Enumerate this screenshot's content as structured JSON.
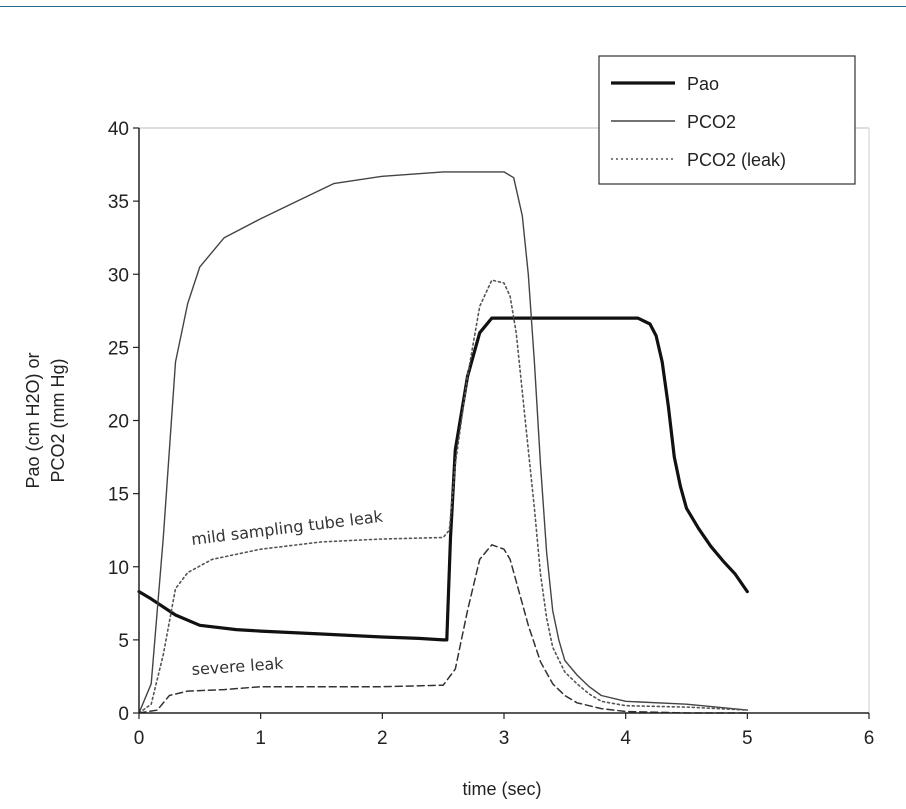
{
  "chart_data": {
    "type": "line",
    "xlabel": "time (sec)",
    "ylabel_line1": "Pao (cm H2O) or",
    "ylabel_line2": "PCO2 (mm Hg)",
    "xlim": [
      0,
      6
    ],
    "ylim": [
      0,
      40
    ],
    "xticks": [
      "0",
      "1",
      "2",
      "3",
      "4",
      "5",
      "6"
    ],
    "yticks": [
      "0",
      "5",
      "10",
      "15",
      "20",
      "25",
      "30",
      "35",
      "40"
    ],
    "grid": false,
    "legend_position": "top-right",
    "legend": [
      "Pao",
      "PCO2",
      "PCO2 (leak)"
    ],
    "annotations": [
      "mild sampling tube leak",
      "severe leak"
    ],
    "series": [
      {
        "name": "Pao",
        "style": "thick-solid",
        "points": [
          [
            0,
            8.3
          ],
          [
            0.1,
            7.8
          ],
          [
            0.3,
            6.7
          ],
          [
            0.5,
            6.0
          ],
          [
            0.8,
            5.7
          ],
          [
            1.0,
            5.6
          ],
          [
            1.5,
            5.4
          ],
          [
            2.0,
            5.2
          ],
          [
            2.3,
            5.1
          ],
          [
            2.5,
            5.0
          ],
          [
            2.53,
            5.0
          ],
          [
            2.56,
            12.0
          ],
          [
            2.6,
            18.0
          ],
          [
            2.7,
            23.0
          ],
          [
            2.8,
            26.0
          ],
          [
            2.9,
            27.0
          ],
          [
            3.0,
            27.0
          ],
          [
            3.5,
            27.0
          ],
          [
            4.0,
            27.0
          ],
          [
            4.1,
            27.0
          ],
          [
            4.2,
            26.6
          ],
          [
            4.25,
            25.8
          ],
          [
            4.3,
            24.0
          ],
          [
            4.35,
            21.0
          ],
          [
            4.4,
            17.5
          ],
          [
            4.45,
            15.5
          ],
          [
            4.5,
            14.0
          ],
          [
            4.6,
            12.6
          ],
          [
            4.7,
            11.4
          ],
          [
            4.8,
            10.4
          ],
          [
            4.9,
            9.5
          ],
          [
            5.0,
            8.3
          ]
        ]
      },
      {
        "name": "PCO2",
        "style": "thin-solid",
        "points": [
          [
            0,
            0
          ],
          [
            0.1,
            2.0
          ],
          [
            0.2,
            12.0
          ],
          [
            0.3,
            24.0
          ],
          [
            0.4,
            28.0
          ],
          [
            0.5,
            30.5
          ],
          [
            0.7,
            32.5
          ],
          [
            1.0,
            33.8
          ],
          [
            1.3,
            35.0
          ],
          [
            1.6,
            36.2
          ],
          [
            2.0,
            36.7
          ],
          [
            2.5,
            37.0
          ],
          [
            3.0,
            37.0
          ],
          [
            3.08,
            36.6
          ],
          [
            3.15,
            34.0
          ],
          [
            3.2,
            30.0
          ],
          [
            3.25,
            24.0
          ],
          [
            3.3,
            17.0
          ],
          [
            3.35,
            11.0
          ],
          [
            3.4,
            7.0
          ],
          [
            3.45,
            5.0
          ],
          [
            3.5,
            3.6
          ],
          [
            3.6,
            2.6
          ],
          [
            3.7,
            1.8
          ],
          [
            3.8,
            1.2
          ],
          [
            4.0,
            0.8
          ],
          [
            4.5,
            0.6
          ],
          [
            5.0,
            0.2
          ]
        ]
      },
      {
        "name": "PCO2 (leak)",
        "style": "dotted",
        "points": [
          [
            0,
            0
          ],
          [
            0.1,
            0.6
          ],
          [
            0.2,
            4.0
          ],
          [
            0.3,
            8.5
          ],
          [
            0.4,
            9.6
          ],
          [
            0.6,
            10.5
          ],
          [
            1.0,
            11.2
          ],
          [
            1.5,
            11.7
          ],
          [
            2.0,
            11.9
          ],
          [
            2.5,
            12.0
          ],
          [
            2.55,
            12.5
          ],
          [
            2.6,
            17.0
          ],
          [
            2.7,
            23.0
          ],
          [
            2.8,
            27.8
          ],
          [
            2.9,
            29.6
          ],
          [
            3.0,
            29.4
          ],
          [
            3.05,
            28.5
          ],
          [
            3.1,
            26.0
          ],
          [
            3.2,
            18.0
          ],
          [
            3.25,
            14.0
          ],
          [
            3.3,
            9.5
          ],
          [
            3.35,
            6.5
          ],
          [
            3.4,
            4.5
          ],
          [
            3.5,
            2.8
          ],
          [
            3.6,
            2.0
          ],
          [
            3.7,
            1.3
          ],
          [
            3.8,
            0.8
          ],
          [
            4.0,
            0.5
          ],
          [
            4.5,
            0.4
          ],
          [
            5.0,
            0.2
          ]
        ]
      },
      {
        "name": "severe leak",
        "style": "dashed",
        "points": [
          [
            0,
            0
          ],
          [
            0.15,
            0.2
          ],
          [
            0.25,
            1.2
          ],
          [
            0.4,
            1.5
          ],
          [
            0.7,
            1.6
          ],
          [
            1.0,
            1.8
          ],
          [
            1.5,
            1.8
          ],
          [
            2.0,
            1.8
          ],
          [
            2.5,
            1.9
          ],
          [
            2.6,
            3.0
          ],
          [
            2.7,
            7.0
          ],
          [
            2.8,
            10.5
          ],
          [
            2.9,
            11.5
          ],
          [
            3.0,
            11.2
          ],
          [
            3.05,
            10.5
          ],
          [
            3.1,
            9.0
          ],
          [
            3.2,
            6.0
          ],
          [
            3.3,
            3.5
          ],
          [
            3.4,
            2.0
          ],
          [
            3.5,
            1.2
          ],
          [
            3.6,
            0.7
          ],
          [
            3.8,
            0.3
          ],
          [
            4.0,
            0.1
          ],
          [
            4.5,
            0.0
          ],
          [
            5.0,
            0.0
          ]
        ]
      }
    ]
  }
}
